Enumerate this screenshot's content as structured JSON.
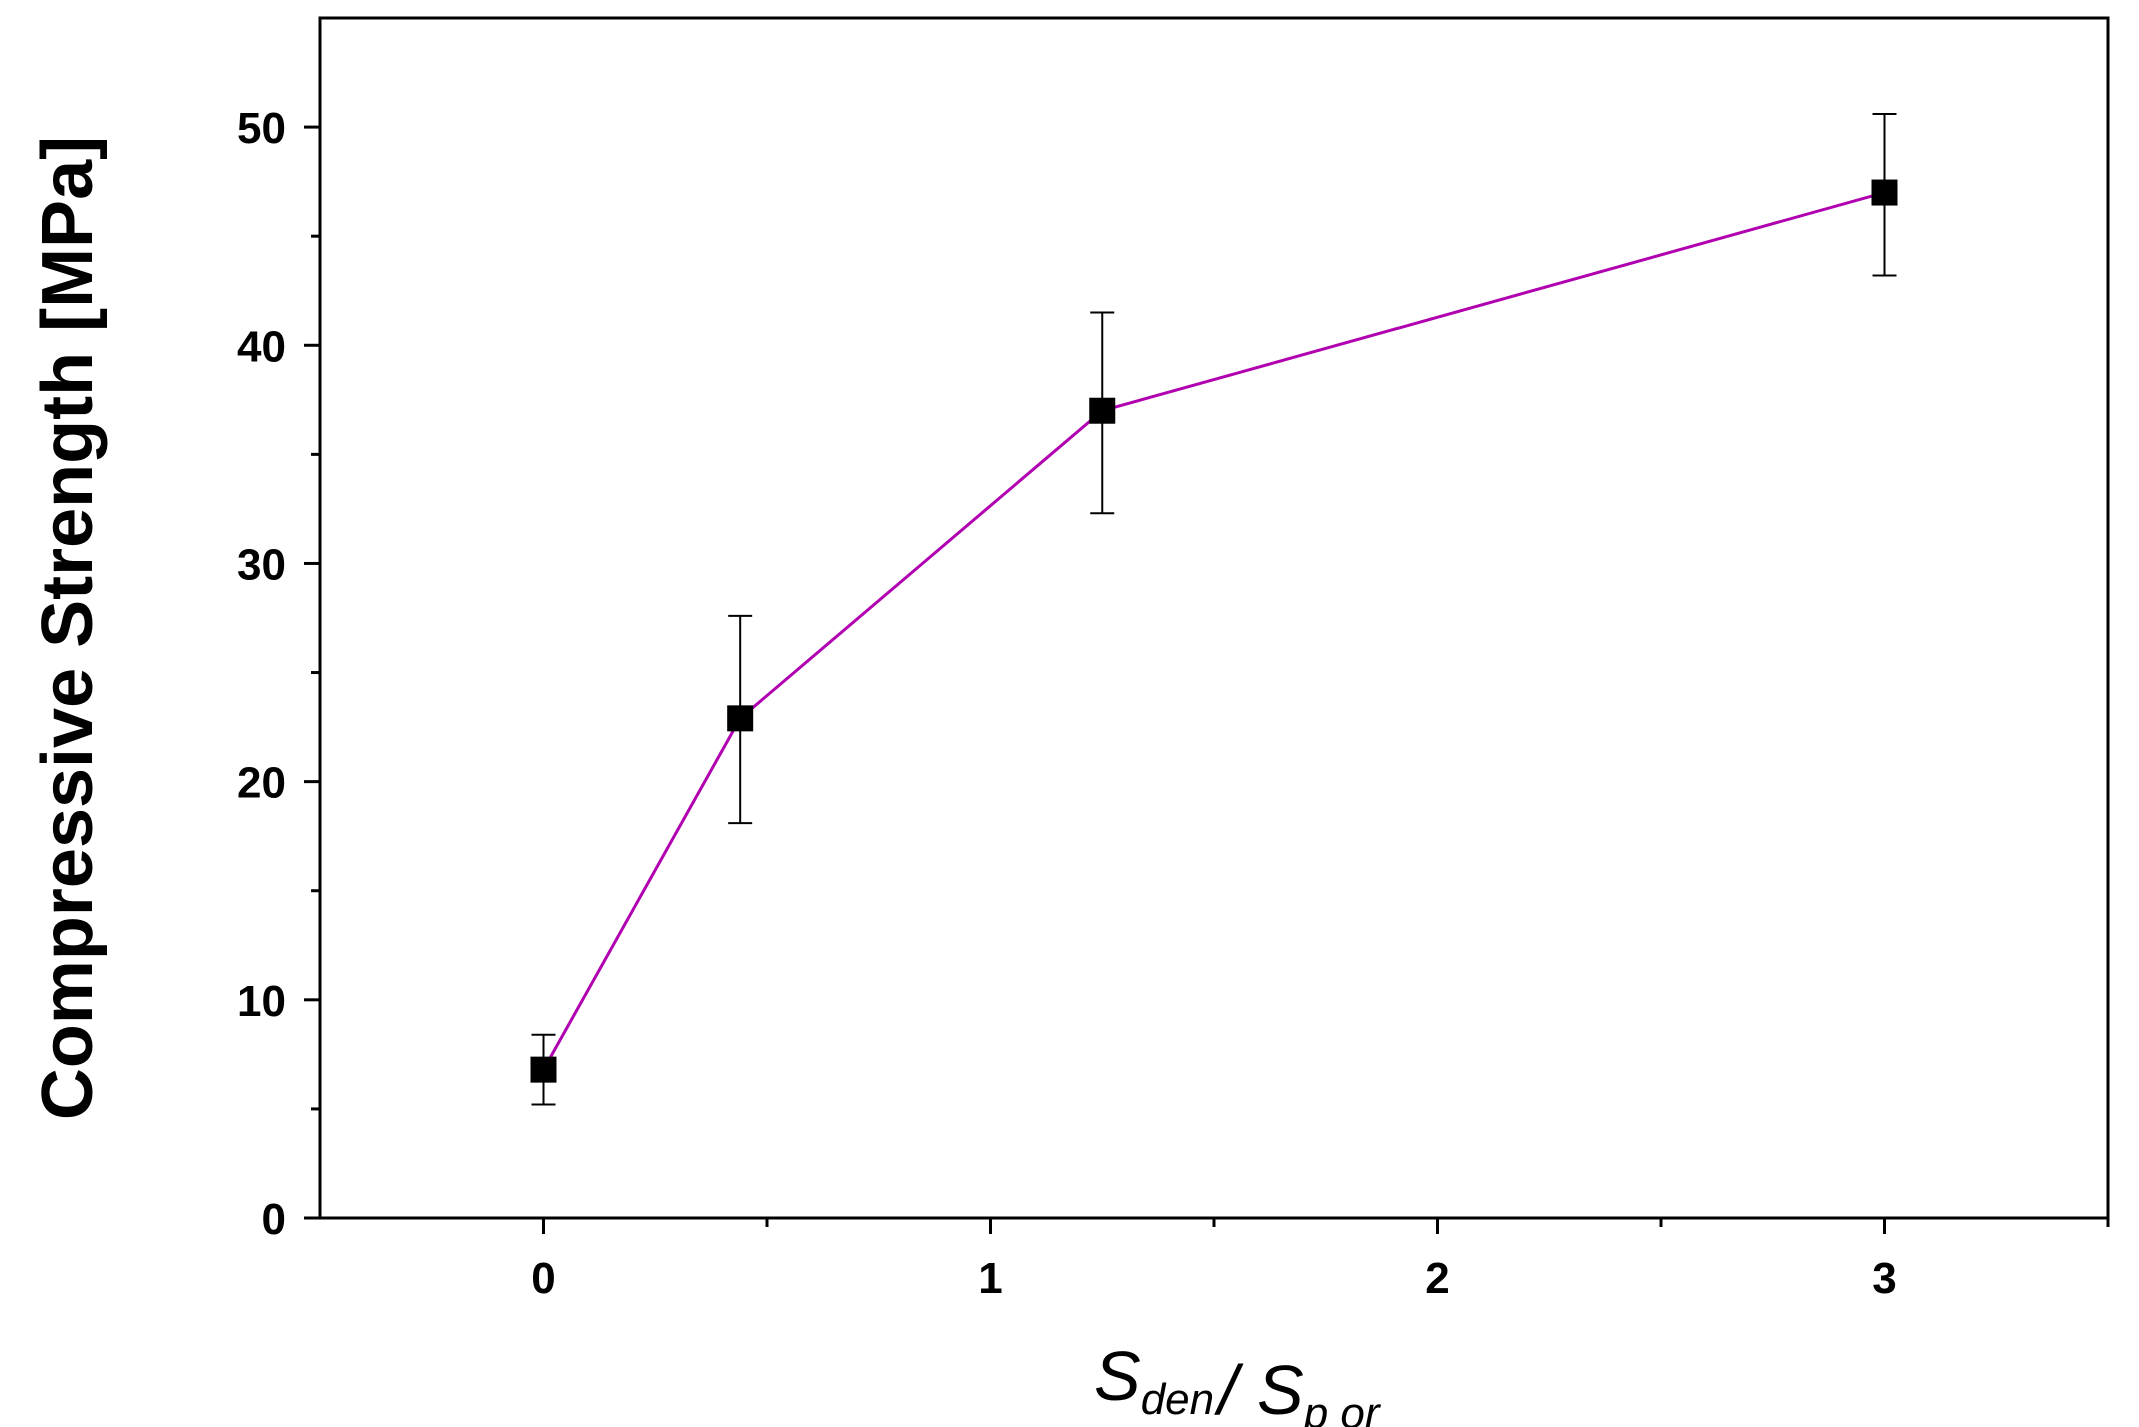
{
  "chart_data": {
    "type": "line",
    "title": "",
    "xlabel": {
      "parts": [
        {
          "text": "S",
          "sub": "den"
        },
        {
          "text": "/ "
        },
        {
          "text": "S",
          "sub": "p or"
        }
      ]
    },
    "ylabel": "Compressive Strength [MPa]",
    "xlim": [
      -0.5,
      3.5
    ],
    "ylim": [
      0,
      55
    ],
    "xticks": [
      0,
      1,
      2,
      3
    ],
    "xticks_minor": [
      0.5,
      1.5,
      2.5,
      3.5
    ],
    "yticks": [
      0,
      10,
      20,
      30,
      40,
      50
    ],
    "yticks_minor": [
      5,
      15,
      25,
      35,
      45
    ],
    "grid": false,
    "line_color": "#B000B0",
    "marker_color": "#000000",
    "series": [
      {
        "x": [
          0,
          0.44,
          1.25,
          3
        ],
        "y": [
          6.8,
          22.9,
          37.0,
          47.0
        ],
        "err_low": [
          5.2,
          18.1,
          32.3,
          43.2
        ],
        "err_high": [
          8.4,
          27.6,
          41.5,
          50.6
        ]
      }
    ]
  }
}
